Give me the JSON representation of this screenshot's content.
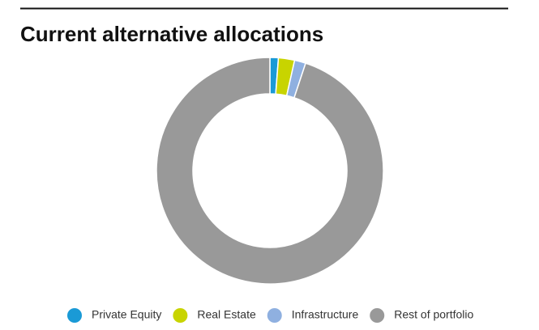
{
  "chart_data": {
    "type": "donut",
    "title": "Current alternative allocations",
    "categories": [
      "Private Equity",
      "Real Estate",
      "Infrastructure",
      "Rest of portfolio"
    ],
    "values": [
      1.2,
      2.3,
      1.6,
      94.9
    ],
    "colors": [
      "#1a9ad6",
      "#c8d400",
      "#8fb0e0",
      "#999999"
    ],
    "legend": "bottom"
  }
}
